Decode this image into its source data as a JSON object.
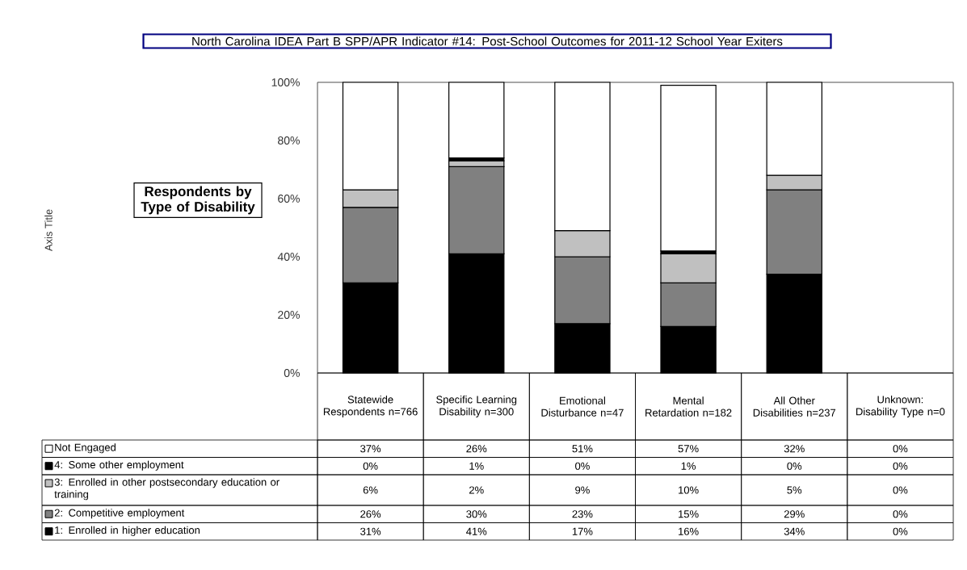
{
  "chart_data": {
    "type": "bar",
    "stacked": true,
    "title": "North Carolina IDEA Part B SPP/APR Indicator #14: Post-School Outcomes for 2011-12 School Year Exiters",
    "annotations": [
      "Axis Title",
      "Respondents by Type of Disability"
    ],
    "categories": [
      "Statewide Respondents n=766",
      "Specific Learning Disability n=300",
      "Emotional Disturbance n=47",
      "Mental Retardation n=182",
      "All Other Disabilities n=237",
      "Unknown: Disability Type n=0"
    ],
    "ylim": [
      0,
      100
    ],
    "yticks": [
      {
        "value": 0,
        "label": "0%"
      },
      {
        "value": 20,
        "label": "20%"
      },
      {
        "value": 40,
        "label": "40%"
      },
      {
        "value": 60,
        "label": "60%"
      },
      {
        "value": 80,
        "label": "80%"
      },
      {
        "value": 100,
        "label": "100%"
      }
    ],
    "legend": "bottom",
    "series": [
      {
        "name": "1: Enrolled in higher education",
        "color": "#000000",
        "values": [
          31,
          41,
          17,
          16,
          34,
          0
        ],
        "value_labels": [
          "31%",
          "41%",
          "17%",
          "16%",
          "34%",
          "0%"
        ]
      },
      {
        "name": "2: Competitive employment",
        "color": "#808080",
        "values": [
          26,
          30,
          23,
          15,
          29,
          0
        ],
        "value_labels": [
          "26%",
          "30%",
          "23%",
          "15%",
          "29%",
          "0%"
        ]
      },
      {
        "name": "3: Enrolled in other postsecondary education or training",
        "color": "#c0c0c0",
        "values": [
          6,
          2,
          9,
          10,
          5,
          0
        ],
        "value_labels": [
          "6%",
          "2%",
          "9%",
          "10%",
          "5%",
          "0%"
        ]
      },
      {
        "name": "4: Some other employment",
        "color": "#000000",
        "values": [
          0,
          1,
          0,
          1,
          0,
          0
        ],
        "value_labels": [
          "0%",
          "1%",
          "0%",
          "1%",
          "0%",
          "0%"
        ]
      },
      {
        "name": "Not Engaged",
        "color": "#ffffff",
        "values": [
          37,
          26,
          51,
          57,
          32,
          0
        ],
        "value_labels": [
          "37%",
          "26%",
          "51%",
          "57%",
          "32%",
          "0%"
        ]
      }
    ]
  }
}
